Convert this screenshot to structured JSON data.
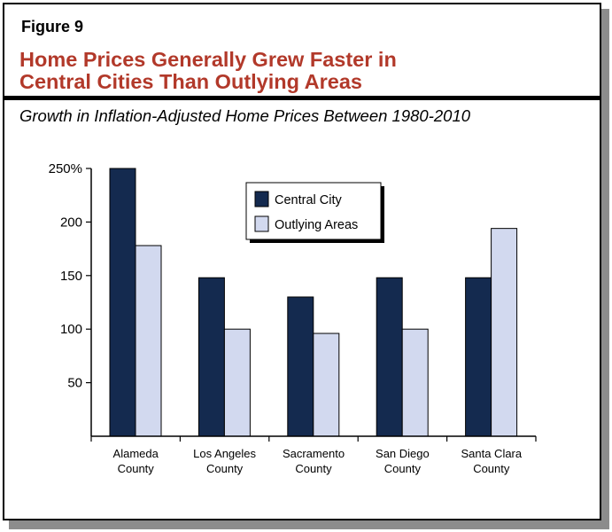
{
  "figure_label": "Figure 9",
  "title_line1": "Home Prices Generally Grew Faster in",
  "title_line2": "Central Cities Than Outlying Areas",
  "subtitle": "Growth in Inflation-Adjusted Home Prices Between 1980-2010",
  "colors": {
    "title": "#b2392a",
    "central": "#142a4f",
    "outlying": "#d2d9ef",
    "axis": "#000000"
  },
  "chart_data": {
    "type": "bar",
    "title": "Home Prices Generally Grew Faster in Central Cities Than Outlying Areas",
    "subtitle": "Growth in Inflation-Adjusted Home Prices Between 1980-2010",
    "categories": [
      [
        "Alameda",
        "County"
      ],
      [
        "Los Angeles",
        "County"
      ],
      [
        "Sacramento",
        "County"
      ],
      [
        "San Diego",
        "County"
      ],
      [
        "Santa Clara",
        "County"
      ]
    ],
    "series": [
      {
        "name": "Central City",
        "values": [
          250,
          148,
          130,
          148,
          148
        ]
      },
      {
        "name": "Outlying Areas",
        "values": [
          178,
          100,
          96,
          100,
          194
        ]
      }
    ],
    "ylim": [
      0,
      250
    ],
    "yticks": [
      50,
      100,
      150,
      200,
      250
    ],
    "ytick_labels": [
      "50",
      "100",
      "150",
      "200",
      "250%"
    ],
    "xlabel": "",
    "ylabel": "",
    "legend_position": "top-center",
    "grid": false
  }
}
